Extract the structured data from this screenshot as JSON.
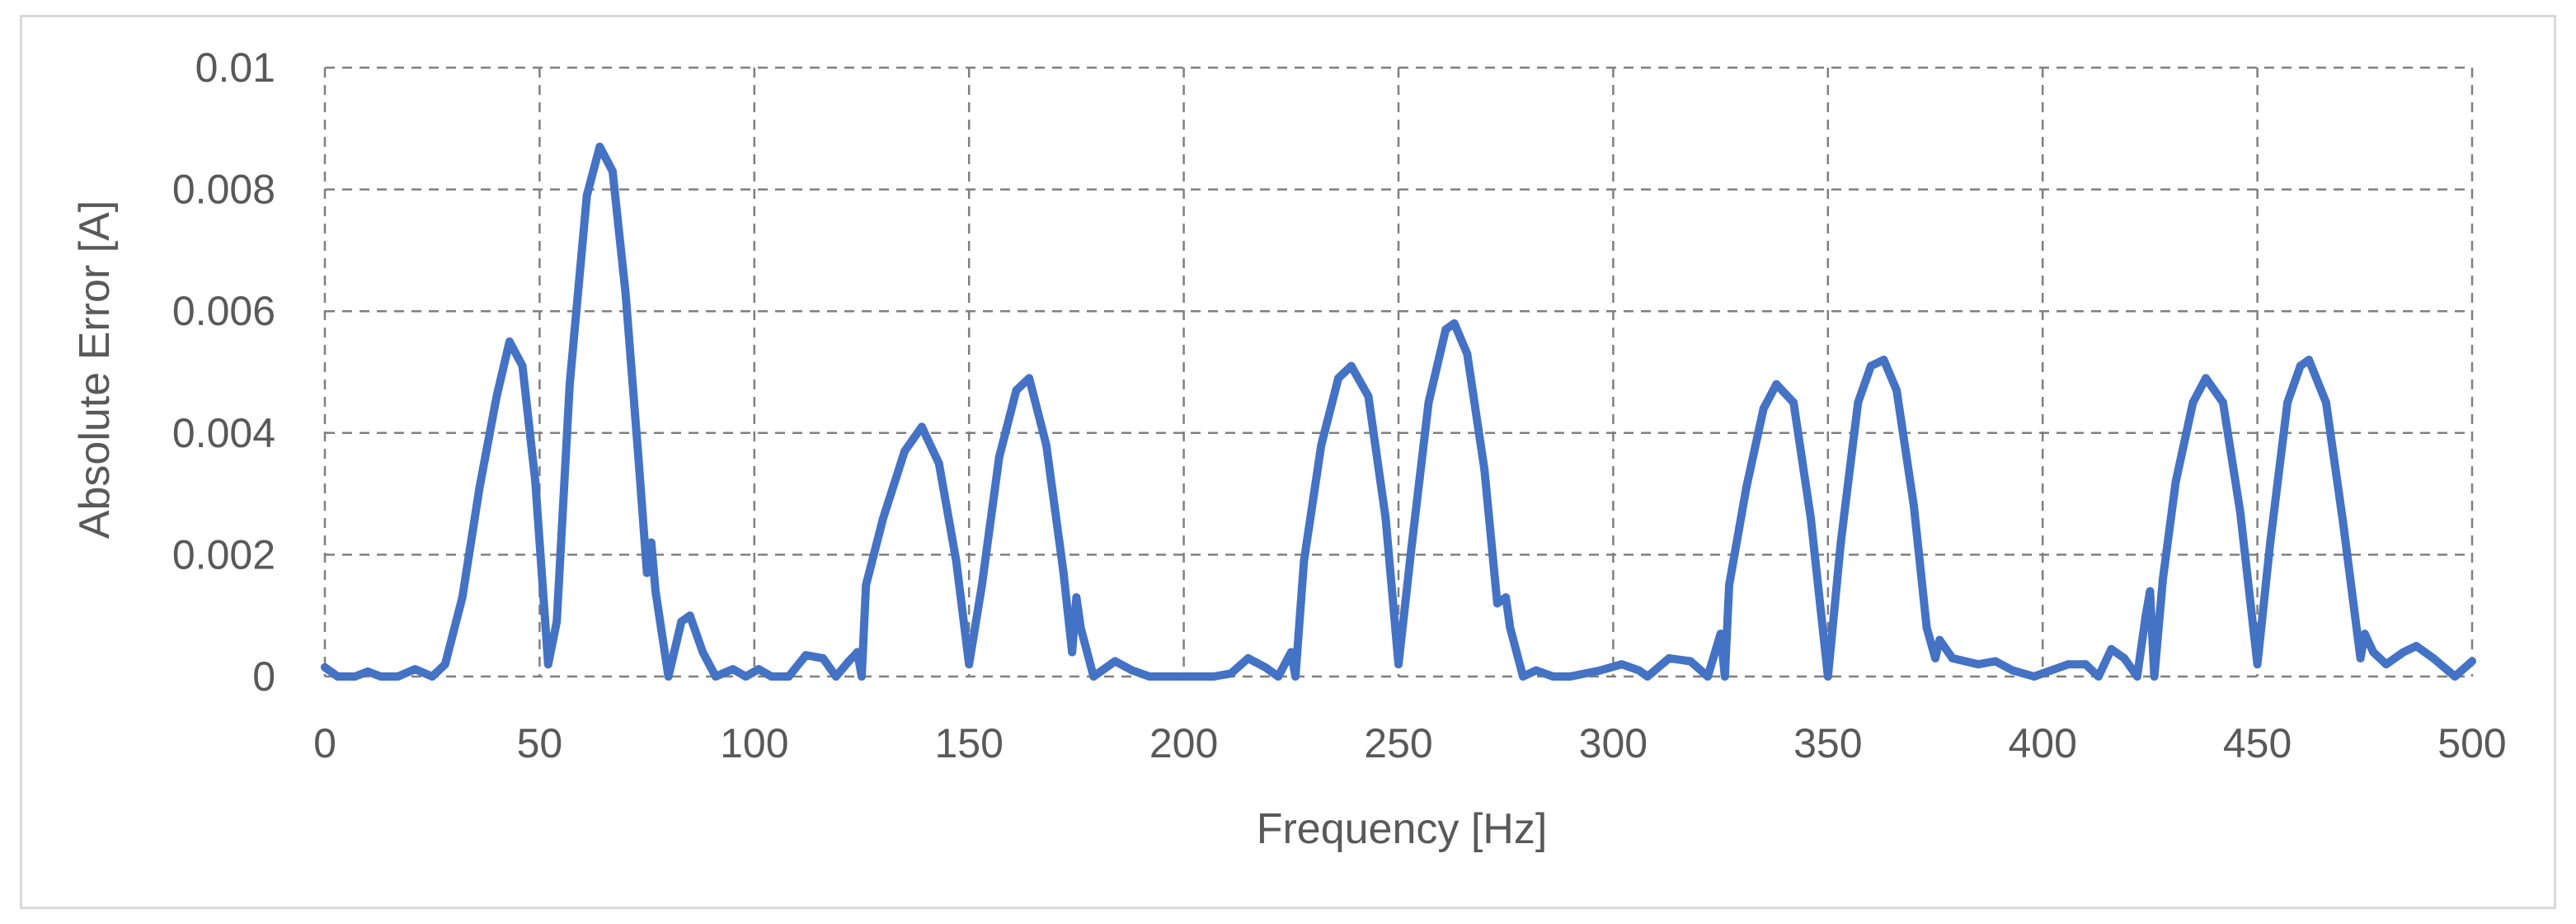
{
  "chart_data": {
    "type": "line",
    "title": "",
    "xlabel": "Frequency [Hz]",
    "ylabel": "Absolute Error [A]",
    "xlim": [
      0,
      500
    ],
    "ylim": [
      0,
      0.01
    ],
    "grid": true,
    "x_ticks": [
      "0",
      "50",
      "100",
      "150",
      "200",
      "250",
      "300",
      "350",
      "400",
      "450",
      "500"
    ],
    "y_ticks": [
      "0",
      "0.002",
      "0.004",
      "0.006",
      "0.008",
      "0.01"
    ],
    "colors": {
      "series": "#4472C4",
      "grid": "#7f7f7f",
      "text": "#595959",
      "frame": "#d9d9d9"
    },
    "series": [
      {
        "values": [
          [
            0,
            0.00015
          ],
          [
            3,
            0.0
          ],
          [
            7,
            0.0
          ],
          [
            10,
            8e-05
          ],
          [
            13,
            0.0
          ],
          [
            17,
            0.0
          ],
          [
            21,
            0.00012
          ],
          [
            25,
            0.0
          ],
          [
            28,
            0.0002
          ],
          [
            32,
            0.0013
          ],
          [
            36,
            0.0031
          ],
          [
            40,
            0.0046
          ],
          [
            43,
            0.0055
          ],
          [
            46,
            0.0051
          ],
          [
            49,
            0.0032
          ],
          [
            52,
            0.0002
          ],
          [
            54,
            0.0009
          ],
          [
            57,
            0.0048
          ],
          [
            61,
            0.0079
          ],
          [
            64,
            0.0087
          ],
          [
            67,
            0.0083
          ],
          [
            70,
            0.0063
          ],
          [
            73,
            0.0036
          ],
          [
            75,
            0.0017
          ],
          [
            76,
            0.0022
          ],
          [
            77,
            0.0014
          ],
          [
            80,
            0.0
          ],
          [
            83,
            0.0009
          ],
          [
            85,
            0.001
          ],
          [
            88,
            0.0004
          ],
          [
            91,
            0.0
          ],
          [
            95,
            0.00012
          ],
          [
            98,
            0.0
          ],
          [
            101,
            0.00012
          ],
          [
            104,
            0.0
          ],
          [
            108,
            0.0
          ],
          [
            112,
            0.00035
          ],
          [
            116,
            0.0003
          ],
          [
            119,
            0.0
          ],
          [
            122,
            0.00025
          ],
          [
            124,
            0.0004
          ],
          [
            125,
            0.0
          ],
          [
            126,
            0.0015
          ],
          [
            130,
            0.0026
          ],
          [
            135,
            0.0037
          ],
          [
            139,
            0.0041
          ],
          [
            143,
            0.0035
          ],
          [
            147,
            0.0019
          ],
          [
            150,
            0.0002
          ],
          [
            153,
            0.0015
          ],
          [
            157,
            0.0036
          ],
          [
            161,
            0.0047
          ],
          [
            164,
            0.0049
          ],
          [
            168,
            0.0038
          ],
          [
            172,
            0.0017
          ],
          [
            174,
            0.0004
          ],
          [
            175,
            0.0013
          ],
          [
            176,
            0.0008
          ],
          [
            179,
            0.0
          ],
          [
            184,
            0.00025
          ],
          [
            188,
            0.0001
          ],
          [
            192,
            0.0
          ],
          [
            200,
            0.0
          ],
          [
            207,
            0.0
          ],
          [
            211,
            5e-05
          ],
          [
            215,
            0.0003
          ],
          [
            219,
            0.00015
          ],
          [
            222,
            0.0
          ],
          [
            225,
            0.0004
          ],
          [
            226,
            0.0
          ],
          [
            228,
            0.0019
          ],
          [
            232,
            0.0038
          ],
          [
            236,
            0.0049
          ],
          [
            239,
            0.0051
          ],
          [
            243,
            0.0046
          ],
          [
            247,
            0.0026
          ],
          [
            250,
            0.0002
          ],
          [
            253,
            0.0021
          ],
          [
            257,
            0.0045
          ],
          [
            261,
            0.0057
          ],
          [
            263,
            0.0058
          ],
          [
            266,
            0.0053
          ],
          [
            270,
            0.0034
          ],
          [
            273,
            0.0012
          ],
          [
            275,
            0.0013
          ],
          [
            276,
            0.0008
          ],
          [
            279,
            0.0
          ],
          [
            282,
            0.0001
          ],
          [
            286,
            0.0
          ],
          [
            290,
            0.0
          ],
          [
            297,
            0.0001
          ],
          [
            302,
            0.0002
          ],
          [
            306,
            0.0001
          ],
          [
            308,
            0.0
          ],
          [
            313,
            0.0003
          ],
          [
            318,
            0.00025
          ],
          [
            322,
            0.0
          ],
          [
            325,
            0.0007
          ],
          [
            326,
            0.0
          ],
          [
            327,
            0.0015
          ],
          [
            331,
            0.0031
          ],
          [
            335,
            0.0044
          ],
          [
            338,
            0.0048
          ],
          [
            342,
            0.0045
          ],
          [
            346,
            0.0026
          ],
          [
            350,
            0.0
          ],
          [
            353,
            0.0022
          ],
          [
            357,
            0.0045
          ],
          [
            360,
            0.0051
          ],
          [
            363,
            0.0052
          ],
          [
            366,
            0.0047
          ],
          [
            370,
            0.0028
          ],
          [
            373,
            0.0008
          ],
          [
            375,
            0.0003
          ],
          [
            376,
            0.0006
          ],
          [
            379,
            0.0003
          ],
          [
            385,
            0.0002
          ],
          [
            389,
            0.00025
          ],
          [
            393,
            0.0001
          ],
          [
            398,
            0.0
          ],
          [
            402,
            0.0001
          ],
          [
            406,
            0.0002
          ],
          [
            410,
            0.0002
          ],
          [
            413,
            0.0
          ],
          [
            416,
            0.00045
          ],
          [
            419,
            0.0003
          ],
          [
            422,
            0.0
          ],
          [
            424,
            0.001
          ],
          [
            425,
            0.0014
          ],
          [
            426,
            0.0
          ],
          [
            428,
            0.0016
          ],
          [
            431,
            0.0032
          ],
          [
            435,
            0.0045
          ],
          [
            438,
            0.0049
          ],
          [
            442,
            0.0045
          ],
          [
            446,
            0.0027
          ],
          [
            450,
            0.0002
          ],
          [
            453,
            0.0022
          ],
          [
            457,
            0.0045
          ],
          [
            460,
            0.0051
          ],
          [
            462,
            0.0052
          ],
          [
            466,
            0.0045
          ],
          [
            470,
            0.0025
          ],
          [
            474,
            0.0003
          ],
          [
            475,
            0.0007
          ],
          [
            477,
            0.0004
          ],
          [
            480,
            0.0002
          ],
          [
            484,
            0.0004
          ],
          [
            487,
            0.0005
          ],
          [
            491,
            0.0003
          ],
          [
            496,
            0.0
          ],
          [
            500,
            0.00025
          ]
        ]
      }
    ]
  }
}
